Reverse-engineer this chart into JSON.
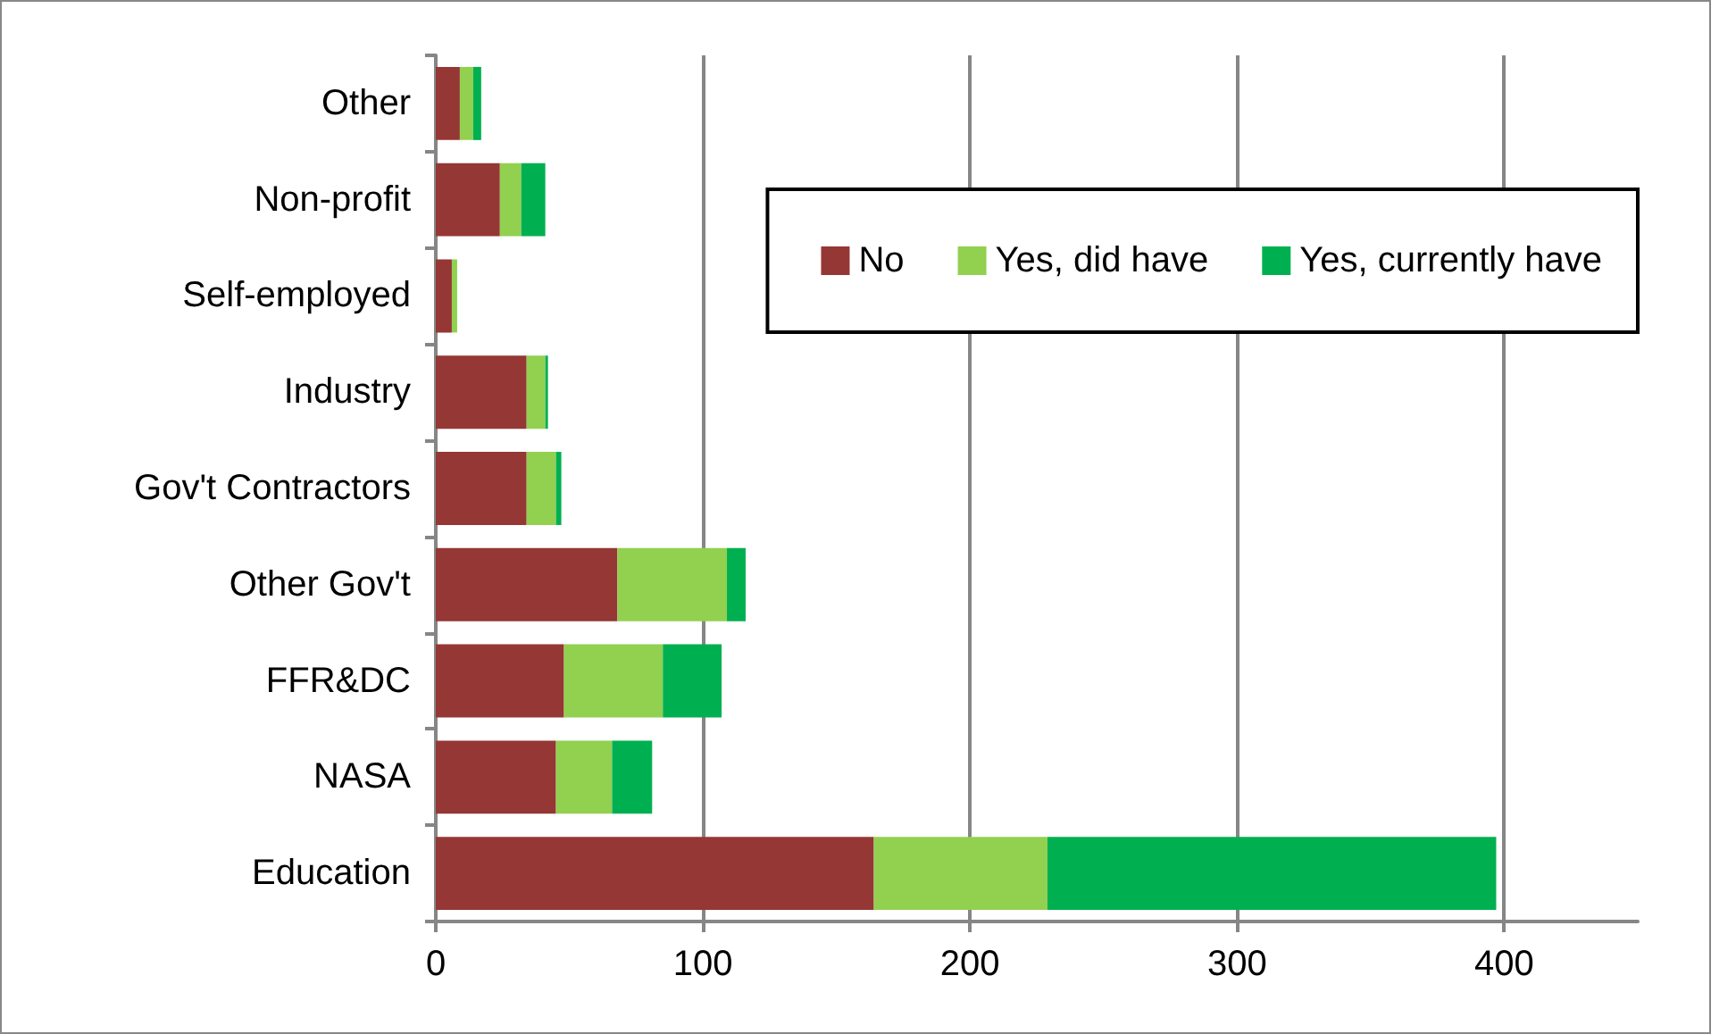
{
  "chart_data": {
    "type": "bar",
    "orientation": "horizontal",
    "stacked": true,
    "categories": [
      "Other",
      "Non-profit",
      "Self-employed",
      "Industry",
      "Gov't Contractors",
      "Other Gov't",
      "FFR&DC",
      "NASA",
      "Education"
    ],
    "series": [
      {
        "name": "No",
        "color": "#953735",
        "values": [
          9,
          24,
          6,
          34,
          34,
          68,
          48,
          45,
          164
        ]
      },
      {
        "name": "Yes, did have",
        "color": "#92d050",
        "values": [
          5,
          8,
          2,
          7,
          11,
          41,
          37,
          21,
          65
        ]
      },
      {
        "name": "Yes, currently have",
        "color": "#00b050",
        "values": [
          3,
          9,
          0,
          1,
          2,
          7,
          22,
          15,
          168
        ]
      }
    ],
    "xlim": [
      0,
      450
    ],
    "xticks": [
      0,
      100,
      200,
      300,
      400
    ],
    "grid": "x",
    "legend": "top right"
  }
}
